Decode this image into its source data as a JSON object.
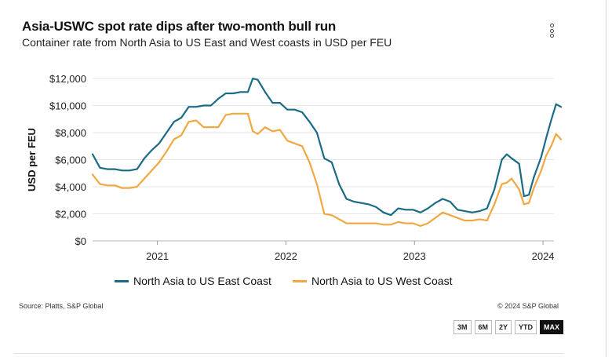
{
  "header": {
    "title": "Asia-USWC spot rate dips after two-month bull run",
    "subtitle": "Container rate from North Asia to US East and West coasts in USD per FEU"
  },
  "footer": {
    "source": "Source: Platts, S&P Global",
    "copyright": "© 2024 S&P Global"
  },
  "range_buttons": [
    {
      "label": "3M",
      "active": false
    },
    {
      "label": "6M",
      "active": false
    },
    {
      "label": "2Y",
      "active": false
    },
    {
      "label": "YTD",
      "active": false
    },
    {
      "label": "MAX",
      "active": true
    }
  ],
  "chart_data": {
    "type": "line",
    "title": "Asia-USWC spot rate dips after two-month bull run",
    "subtitle": "Container rate from North Asia to US East and West coasts in USD per FEU",
    "xlabel": "",
    "ylabel": "USD per FEU",
    "x_range": [
      "2020-07",
      "2024-02"
    ],
    "x_ticks": [
      "2021",
      "2022",
      "2023",
      "2024"
    ],
    "ylim": [
      0,
      12000
    ],
    "y_ticks": [
      "$0",
      "$2,000",
      "$4,000",
      "$6,000",
      "$8,000",
      "$10,000",
      "$12,000"
    ],
    "y_tick_values": [
      0,
      2000,
      4000,
      6000,
      8000,
      10000,
      12000
    ],
    "grid": "horizontal",
    "legend_position": "bottom",
    "series": [
      {
        "name": "North Asia to US East Coast",
        "color": "#1a6b86",
        "points": [
          [
            "2020-07-01",
            6400
          ],
          [
            "2020-07-22",
            5400
          ],
          [
            "2020-08-12",
            5300
          ],
          [
            "2020-09-02",
            5300
          ],
          [
            "2020-09-23",
            5200
          ],
          [
            "2020-10-14",
            5200
          ],
          [
            "2020-11-04",
            5300
          ],
          [
            "2020-11-25",
            6100
          ],
          [
            "2020-12-16",
            6700
          ],
          [
            "2021-01-06",
            7200
          ],
          [
            "2021-01-27",
            8000
          ],
          [
            "2021-02-17",
            8800
          ],
          [
            "2021-03-10",
            9100
          ],
          [
            "2021-03-31",
            9900
          ],
          [
            "2021-04-21",
            9900
          ],
          [
            "2021-05-12",
            10000
          ],
          [
            "2021-06-02",
            10000
          ],
          [
            "2021-06-23",
            10500
          ],
          [
            "2021-07-14",
            10900
          ],
          [
            "2021-08-04",
            10900
          ],
          [
            "2021-08-25",
            11000
          ],
          [
            "2021-09-15",
            11000
          ],
          [
            "2021-09-29",
            12000
          ],
          [
            "2021-10-13",
            11900
          ],
          [
            "2021-11-03",
            11000
          ],
          [
            "2021-11-24",
            10200
          ],
          [
            "2021-12-15",
            10200
          ],
          [
            "2022-01-05",
            9700
          ],
          [
            "2022-01-26",
            9700
          ],
          [
            "2022-02-16",
            9500
          ],
          [
            "2022-03-09",
            8800
          ],
          [
            "2022-03-30",
            8000
          ],
          [
            "2022-04-20",
            6100
          ],
          [
            "2022-05-11",
            5800
          ],
          [
            "2022-06-01",
            4200
          ],
          [
            "2022-06-22",
            3100
          ],
          [
            "2022-07-13",
            2900
          ],
          [
            "2022-08-03",
            2800
          ],
          [
            "2022-08-24",
            2700
          ],
          [
            "2022-09-14",
            2500
          ],
          [
            "2022-10-05",
            2100
          ],
          [
            "2022-10-26",
            1900
          ],
          [
            "2022-11-16",
            2400
          ],
          [
            "2022-12-07",
            2300
          ],
          [
            "2022-12-28",
            2300
          ],
          [
            "2023-01-18",
            2100
          ],
          [
            "2023-02-08",
            2400
          ],
          [
            "2023-03-01",
            2800
          ],
          [
            "2023-03-22",
            3100
          ],
          [
            "2023-04-12",
            2900
          ],
          [
            "2023-05-03",
            2300
          ],
          [
            "2023-05-24",
            2200
          ],
          [
            "2023-06-14",
            2100
          ],
          [
            "2023-07-05",
            2200
          ],
          [
            "2023-07-26",
            2400
          ],
          [
            "2023-08-16",
            3800
          ],
          [
            "2023-09-06",
            6000
          ],
          [
            "2023-09-20",
            6400
          ],
          [
            "2023-10-04",
            6100
          ],
          [
            "2023-10-25",
            5700
          ],
          [
            "2023-11-08",
            3300
          ],
          [
            "2023-11-22",
            3400
          ],
          [
            "2023-12-06",
            4700
          ],
          [
            "2023-12-27",
            6200
          ],
          [
            "2024-01-10",
            7600
          ],
          [
            "2024-01-24",
            8900
          ],
          [
            "2024-02-07",
            10100
          ],
          [
            "2024-02-21",
            9900
          ]
        ]
      },
      {
        "name": "North Asia to US West Coast",
        "color": "#f0a840",
        "points": [
          [
            "2020-07-01",
            4900
          ],
          [
            "2020-07-22",
            4200
          ],
          [
            "2020-08-12",
            4100
          ],
          [
            "2020-09-02",
            4100
          ],
          [
            "2020-09-23",
            3900
          ],
          [
            "2020-10-14",
            3900
          ],
          [
            "2020-11-04",
            4000
          ],
          [
            "2020-11-25",
            4600
          ],
          [
            "2020-12-16",
            5200
          ],
          [
            "2021-01-06",
            5800
          ],
          [
            "2021-01-27",
            6600
          ],
          [
            "2021-02-17",
            7500
          ],
          [
            "2021-03-10",
            7800
          ],
          [
            "2021-03-31",
            8800
          ],
          [
            "2021-04-21",
            8900
          ],
          [
            "2021-05-12",
            8400
          ],
          [
            "2021-06-02",
            8400
          ],
          [
            "2021-06-23",
            8400
          ],
          [
            "2021-07-14",
            9300
          ],
          [
            "2021-08-04",
            9400
          ],
          [
            "2021-08-25",
            9400
          ],
          [
            "2021-09-15",
            9400
          ],
          [
            "2021-09-29",
            8100
          ],
          [
            "2021-10-13",
            7900
          ],
          [
            "2021-11-03",
            8400
          ],
          [
            "2021-11-24",
            8100
          ],
          [
            "2021-12-15",
            8200
          ],
          [
            "2022-01-05",
            7400
          ],
          [
            "2022-01-26",
            7200
          ],
          [
            "2022-02-16",
            7000
          ],
          [
            "2022-03-09",
            5800
          ],
          [
            "2022-03-30",
            4200
          ],
          [
            "2022-04-20",
            2000
          ],
          [
            "2022-05-11",
            1900
          ],
          [
            "2022-06-01",
            1600
          ],
          [
            "2022-06-22",
            1300
          ],
          [
            "2022-07-13",
            1300
          ],
          [
            "2022-08-03",
            1300
          ],
          [
            "2022-08-24",
            1300
          ],
          [
            "2022-09-14",
            1300
          ],
          [
            "2022-10-05",
            1200
          ],
          [
            "2022-10-26",
            1200
          ],
          [
            "2022-11-16",
            1400
          ],
          [
            "2022-12-07",
            1300
          ],
          [
            "2022-12-28",
            1300
          ],
          [
            "2023-01-18",
            1100
          ],
          [
            "2023-02-08",
            1300
          ],
          [
            "2023-03-01",
            1700
          ],
          [
            "2023-03-22",
            2100
          ],
          [
            "2023-04-12",
            1900
          ],
          [
            "2023-05-03",
            1700
          ],
          [
            "2023-05-24",
            1500
          ],
          [
            "2023-06-14",
            1500
          ],
          [
            "2023-07-05",
            1600
          ],
          [
            "2023-07-26",
            1500
          ],
          [
            "2023-08-16",
            2700
          ],
          [
            "2023-09-06",
            4200
          ],
          [
            "2023-09-20",
            4300
          ],
          [
            "2023-10-04",
            4600
          ],
          [
            "2023-10-25",
            3800
          ],
          [
            "2023-11-08",
            2700
          ],
          [
            "2023-11-22",
            2800
          ],
          [
            "2023-12-06",
            3900
          ],
          [
            "2023-12-27",
            5200
          ],
          [
            "2024-01-10",
            6300
          ],
          [
            "2024-01-24",
            7000
          ],
          [
            "2024-02-07",
            7900
          ],
          [
            "2024-02-21",
            7500
          ]
        ]
      }
    ]
  }
}
